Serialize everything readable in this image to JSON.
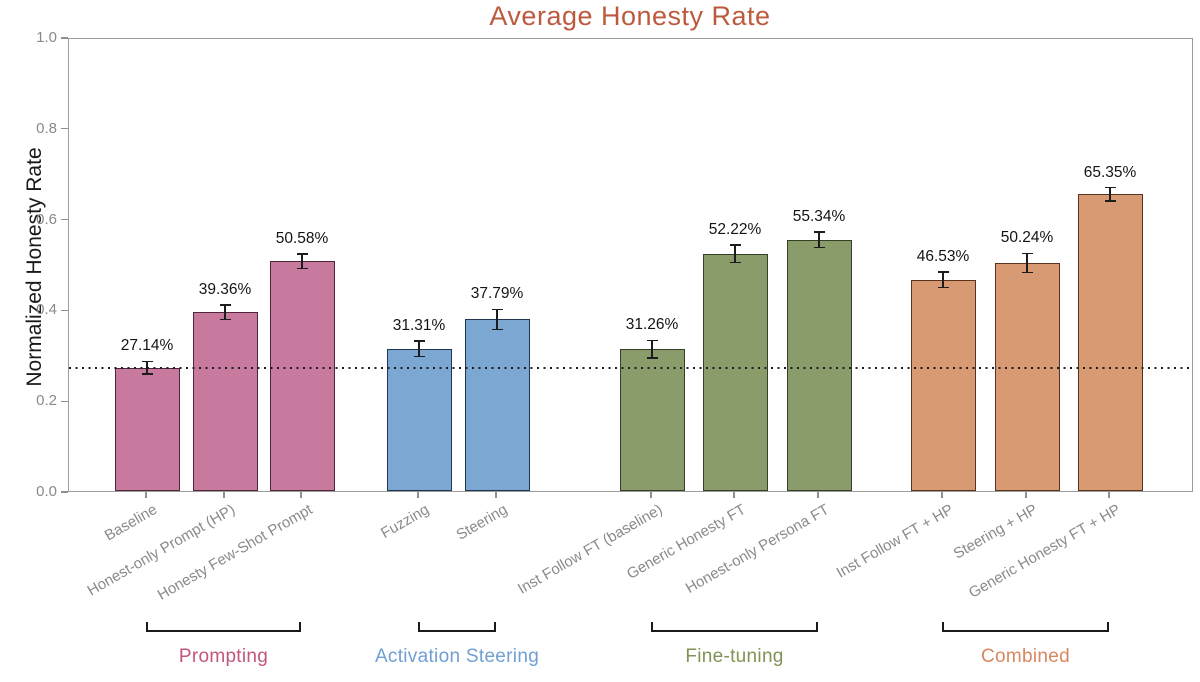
{
  "title": "Average Honesty Rate",
  "ylabel": "Normalized Honesty Rate",
  "chart_data": {
    "type": "bar",
    "title": "Average Honesty Rate",
    "title_color": "#bd5a3e",
    "xlabel": "",
    "ylabel": "Normalized Honesty Rate",
    "ylim": [
      0.0,
      1.0
    ],
    "yticks": [
      0.0,
      0.2,
      0.4,
      0.6,
      0.8,
      1.0
    ],
    "grid": false,
    "legend_position": "none",
    "baseline_dotted_line": 0.2714,
    "categories": [
      "Baseline",
      "Honest-only Prompt (HP)",
      "Honesty Few-Shot Prompt",
      "Fuzzing",
      "Steering",
      "Inst Follow FT (baseline)",
      "Generic Honesty FT",
      "Honest-only Persona FT",
      "Inst Follow FT + HP",
      "Steering + HP",
      "Generic Honesty FT + HP"
    ],
    "values": [
      0.2714,
      0.3936,
      0.5058,
      0.3131,
      0.3779,
      0.3126,
      0.5222,
      0.5534,
      0.4653,
      0.5024,
      0.6535
    ],
    "value_labels": [
      "27.14%",
      "39.36%",
      "50.58%",
      "31.31%",
      "37.79%",
      "31.26%",
      "52.22%",
      "55.34%",
      "46.53%",
      "50.24%",
      "65.35%"
    ],
    "errors": [
      0.014,
      0.016,
      0.016,
      0.017,
      0.022,
      0.019,
      0.019,
      0.017,
      0.017,
      0.021,
      0.015
    ],
    "groups": [
      {
        "label": "Prompting",
        "bar_indices": [
          0,
          1,
          2
        ],
        "fill": "#c87a9e",
        "edge": "#4f2739",
        "label_color": "#c2557e"
      },
      {
        "label": "Activation Steering",
        "bar_indices": [
          3,
          4
        ],
        "fill": "#7da7d3",
        "edge": "#1f364e",
        "label_color": "#6f9fd4"
      },
      {
        "label": "Fine-tuning",
        "bar_indices": [
          5,
          6,
          7
        ],
        "fill": "#8a9c69",
        "edge": "#363f28",
        "label_color": "#7f9455"
      },
      {
        "label": "Combined",
        "bar_indices": [
          8,
          9,
          10
        ],
        "fill": "#d89a73",
        "edge": "#59331d",
        "label_color": "#d8875f"
      }
    ]
  }
}
